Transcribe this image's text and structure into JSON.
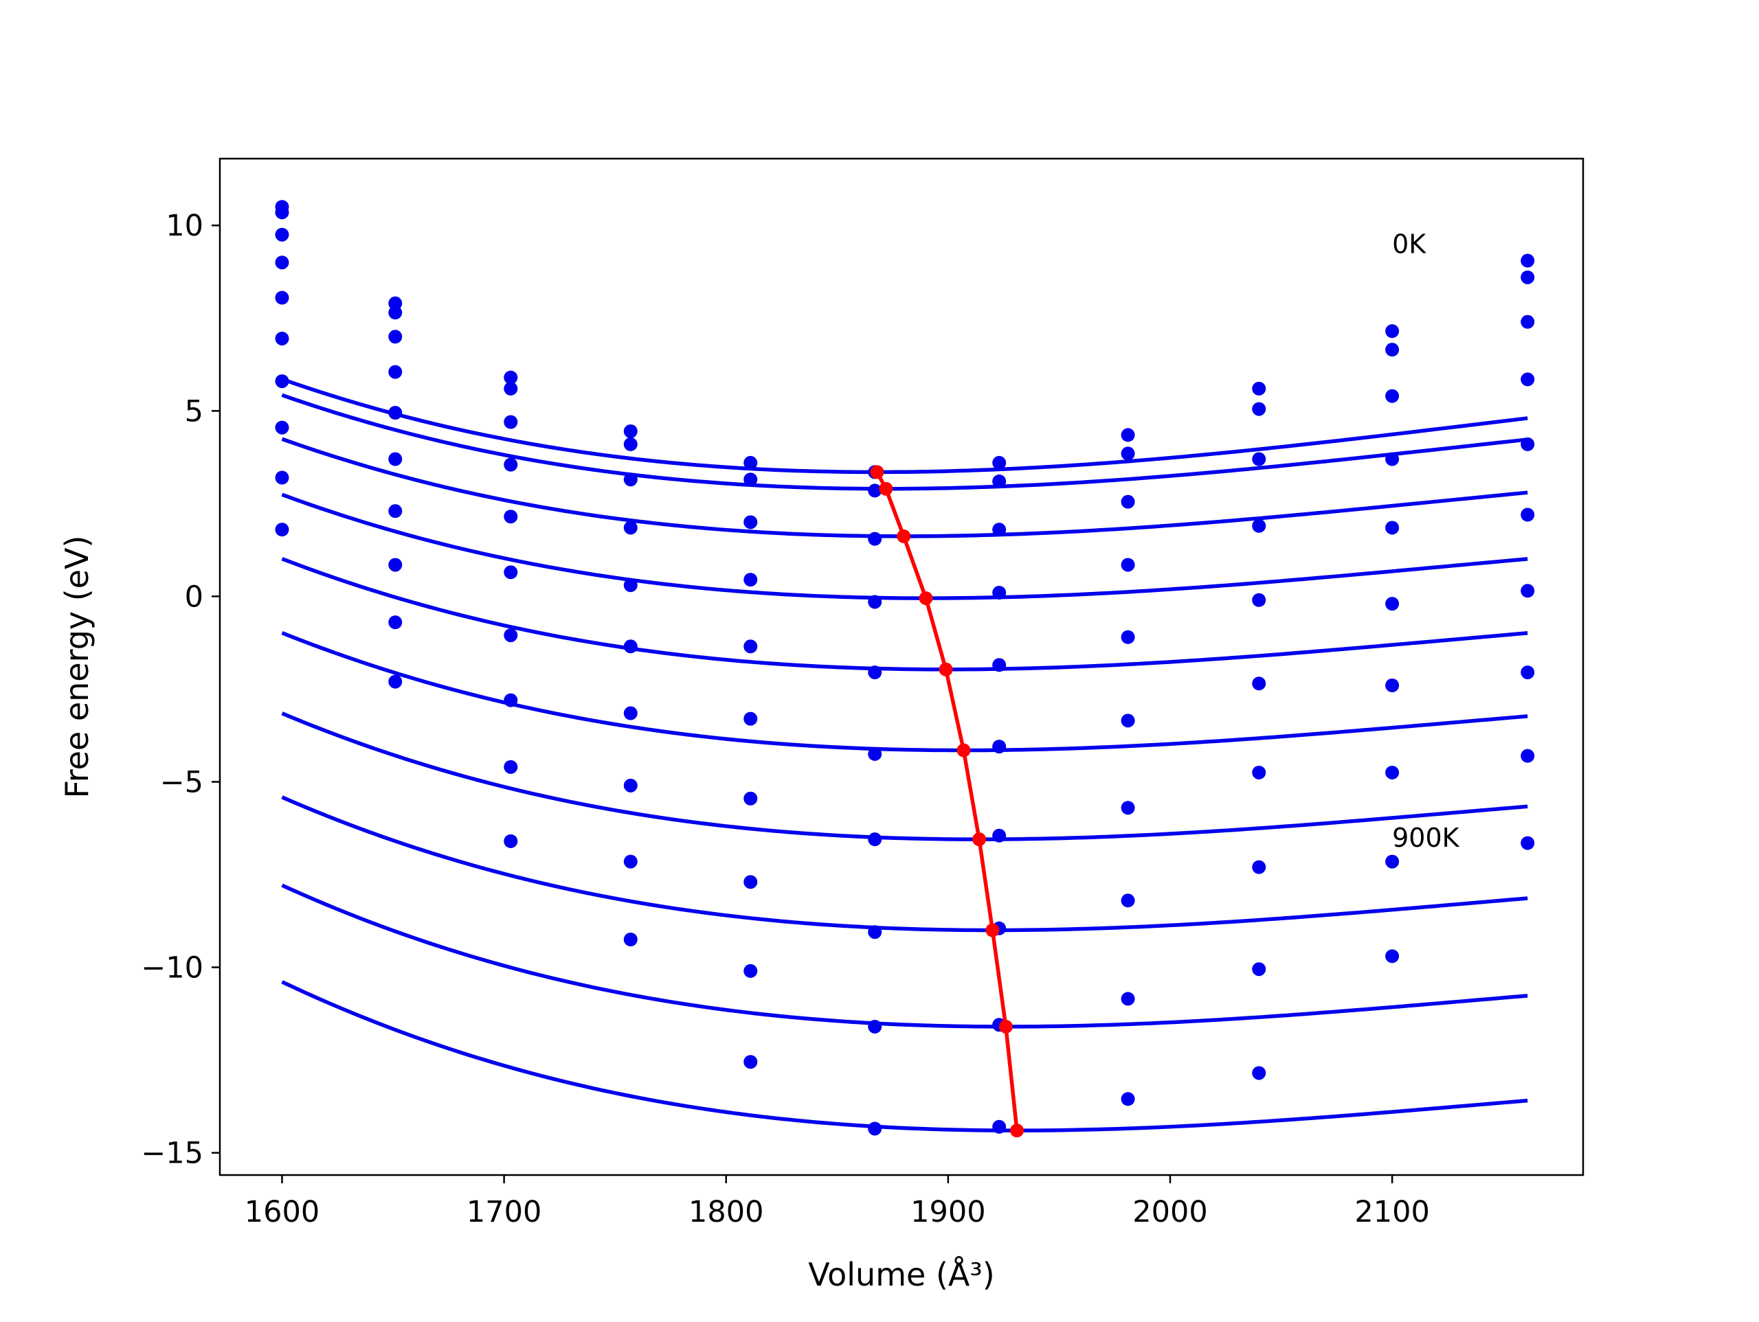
{
  "chart_data": {
    "type": "line",
    "title": "",
    "xlabel": "Volume (Å³)",
    "ylabel": "Free energy (eV)",
    "xlim": [
      1572,
      2186
    ],
    "ylim": [
      -15.6,
      11.8
    ],
    "xticks": [
      1600,
      1700,
      1800,
      1900,
      2000,
      2100
    ],
    "xtick_labels": [
      "1600",
      "1700",
      "1800",
      "1900",
      "2000",
      "2100"
    ],
    "yticks": [
      -15,
      -10,
      -5,
      0,
      5,
      10
    ],
    "ytick_labels": [
      "−15",
      "−10",
      "−5",
      "0",
      "5",
      "10"
    ],
    "grid": false,
    "legend": "none",
    "colors": {
      "data": "#0000ee",
      "minimum": "#ff0000"
    },
    "volumes": [
      1600,
      1651,
      1703,
      1757,
      1811,
      1867,
      1923,
      1981,
      2040,
      2100,
      2161
    ],
    "series": [
      {
        "fit": {
          "v0": 1868,
          "f0": 3.35,
          "a": 2.63e-05,
          "b": 3.2e-08
        },
        "points": [
          10.5,
          7.9,
          5.9,
          4.45,
          3.6,
          3.35,
          3.6,
          4.35,
          5.6,
          7.15,
          9.05
        ]
      },
      {
        "fit": {
          "v0": 1872,
          "f0": 2.9,
          "a": 2.53e-05,
          "b": 3.25e-08
        },
        "points": [
          10.35,
          7.65,
          5.6,
          4.1,
          3.15,
          2.85,
          3.1,
          3.85,
          5.05,
          6.65,
          8.6
        ]
      },
      {
        "fit": {
          "v0": 1880,
          "f0": 1.62,
          "a": 2.42e-05,
          "b": 3.3e-08
        },
        "points": [
          9.75,
          7.0,
          4.7,
          3.15,
          2.0,
          1.55,
          1.8,
          2.55,
          3.7,
          5.4,
          7.4
        ]
      },
      {
        "fit": {
          "v0": 1890,
          "f0": -0.05,
          "a": 2.35e-05,
          "b": 3.35e-08
        },
        "points": [
          9.0,
          6.05,
          3.55,
          1.85,
          0.45,
          -0.15,
          0.1,
          0.85,
          1.9,
          3.7,
          5.85
        ]
      },
      {
        "fit": {
          "v0": 1899,
          "f0": -1.97,
          "a": 2.32e-05,
          "b": 3.4e-08
        },
        "points": [
          8.05,
          4.95,
          2.15,
          0.3,
          -1.35,
          -2.05,
          -1.85,
          -1.1,
          -0.1,
          1.85,
          4.1
        ]
      },
      {
        "fit": {
          "v0": 1907,
          "f0": -4.15,
          "a": 2.3e-05,
          "b": 3.45e-08
        },
        "points": [
          6.95,
          3.7,
          0.65,
          -1.35,
          -3.3,
          -4.25,
          -4.05,
          -3.35,
          -2.35,
          -0.2,
          2.2
        ]
      },
      {
        "fit": {
          "v0": 1914,
          "f0": -6.55,
          "a": 2.33e-05,
          "b": 3.55e-08
        },
        "points": [
          5.8,
          2.3,
          -1.05,
          -3.15,
          -5.45,
          -6.55,
          -6.45,
          -5.7,
          -4.75,
          -2.4,
          0.15
        ]
      },
      {
        "fit": {
          "v0": 1920,
          "f0": -9.0,
          "a": 2.35e-05,
          "b": 3.6e-08
        },
        "points": [
          4.55,
          0.85,
          -2.8,
          -5.1,
          -7.7,
          -9.05,
          -8.95,
          -8.2,
          -7.3,
          -4.75,
          -2.05
        ]
      },
      {
        "fit": {
          "v0": 1926,
          "f0": -11.6,
          "a": 2.38e-05,
          "b": 3.7e-08
        },
        "points": [
          3.2,
          -0.7,
          -4.6,
          -7.15,
          -10.1,
          -11.6,
          -11.55,
          -10.85,
          -10.05,
          -7.15,
          -4.3
        ]
      },
      {
        "fit": {
          "v0": 1931,
          "f0": -14.4,
          "a": 2.4e-05,
          "b": 3.8e-08
        },
        "points": [
          1.8,
          -2.3,
          -6.6,
          -9.25,
          -12.55,
          -14.35,
          -14.3,
          -13.55,
          -12.85,
          -9.7,
          -6.65
        ]
      }
    ],
    "minimum_locus": {
      "v": [
        1868,
        1872,
        1880,
        1890,
        1899,
        1907,
        1914,
        1920,
        1926,
        1931
      ],
      "f": [
        3.35,
        2.9,
        1.62,
        -0.05,
        -1.97,
        -4.15,
        -6.55,
        -9.0,
        -11.6,
        -14.4
      ]
    },
    "annotations": [
      {
        "text": "0K",
        "x": 2100,
        "y": 9.25
      },
      {
        "text": "900K",
        "x": 2100,
        "y": -6.75
      }
    ]
  }
}
